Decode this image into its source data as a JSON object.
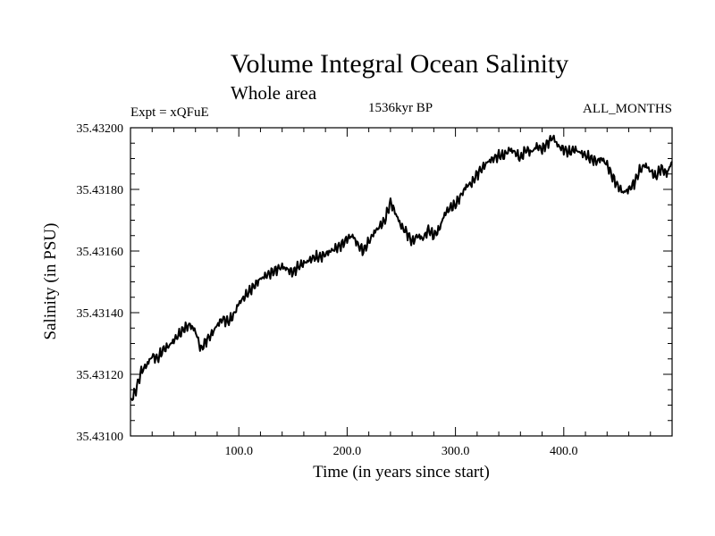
{
  "chart_data": {
    "type": "line",
    "title": "Volume Integral Ocean Salinity",
    "subtitle": "Whole area",
    "annotations": {
      "left": "Expt = xQFuE",
      "center": "1536kyr BP",
      "right": "ALL_MONTHS"
    },
    "xlabel": "Time (in years since start)",
    "ylabel": "Salinity (in PSU)",
    "xlim": [
      0,
      500
    ],
    "ylim": [
      35.431,
      35.432
    ],
    "x_ticks": [
      100,
      200,
      300,
      400
    ],
    "x_tick_labels": [
      "100.0",
      "200.0",
      "300.0",
      "400.0"
    ],
    "y_ticks": [
      35.431,
      35.4312,
      35.4314,
      35.4316,
      35.4318,
      35.432
    ],
    "y_tick_labels": [
      "35.43100",
      "35.43120",
      "35.43140",
      "35.43160",
      "35.43180",
      "35.43200"
    ],
    "grid": false,
    "series": [
      {
        "name": "salinity",
        "x": [
          0,
          5,
          10,
          15,
          20,
          25,
          30,
          35,
          40,
          45,
          50,
          55,
          60,
          65,
          70,
          75,
          80,
          85,
          90,
          95,
          100,
          105,
          110,
          115,
          120,
          125,
          130,
          135,
          140,
          145,
          150,
          155,
          160,
          165,
          170,
          175,
          180,
          185,
          190,
          195,
          200,
          205,
          210,
          215,
          220,
          225,
          230,
          235,
          240,
          245,
          250,
          255,
          260,
          265,
          270,
          275,
          280,
          285,
          290,
          295,
          300,
          305,
          310,
          315,
          320,
          325,
          330,
          335,
          340,
          345,
          350,
          355,
          360,
          365,
          370,
          375,
          380,
          385,
          390,
          395,
          400,
          405,
          410,
          415,
          420,
          425,
          430,
          435,
          440,
          445,
          450,
          455,
          460,
          465,
          470,
          475,
          480,
          485,
          490,
          495,
          500
        ],
        "values": [
          35.43111,
          35.43115,
          35.43121,
          35.43123,
          35.43126,
          35.43125,
          35.43128,
          35.43129,
          35.43131,
          35.43133,
          35.43135,
          35.43136,
          35.43134,
          35.43128,
          35.43131,
          35.43133,
          35.43136,
          35.43138,
          35.43137,
          35.43139,
          35.43143,
          35.43145,
          35.43147,
          35.43149,
          35.43151,
          35.43152,
          35.43153,
          35.43154,
          35.43155,
          35.43154,
          35.43153,
          35.43155,
          35.43156,
          35.43157,
          35.43158,
          35.43158,
          35.43159,
          35.4316,
          35.43161,
          35.43162,
          35.43164,
          35.43165,
          35.43162,
          35.4316,
          35.43163,
          35.43166,
          35.43168,
          35.4317,
          35.43176,
          35.43172,
          35.43168,
          35.43166,
          35.43163,
          35.43165,
          35.43164,
          35.43167,
          35.43165,
          35.43167,
          35.43172,
          35.43174,
          35.43175,
          35.43178,
          35.43181,
          35.43182,
          35.43185,
          35.43187,
          35.43189,
          35.4319,
          35.43191,
          35.43191,
          35.43193,
          35.43192,
          35.4319,
          35.43193,
          35.43192,
          35.43194,
          35.43193,
          35.43195,
          35.43197,
          35.43194,
          35.43193,
          35.43192,
          35.43193,
          35.43192,
          35.43191,
          35.4319,
          35.43189,
          35.4319,
          35.43188,
          35.43184,
          35.43181,
          35.43179,
          35.4318,
          35.43182,
          35.43186,
          35.43188,
          35.43186,
          35.43184,
          35.43187,
          35.43185,
          35.43189
        ]
      }
    ]
  }
}
